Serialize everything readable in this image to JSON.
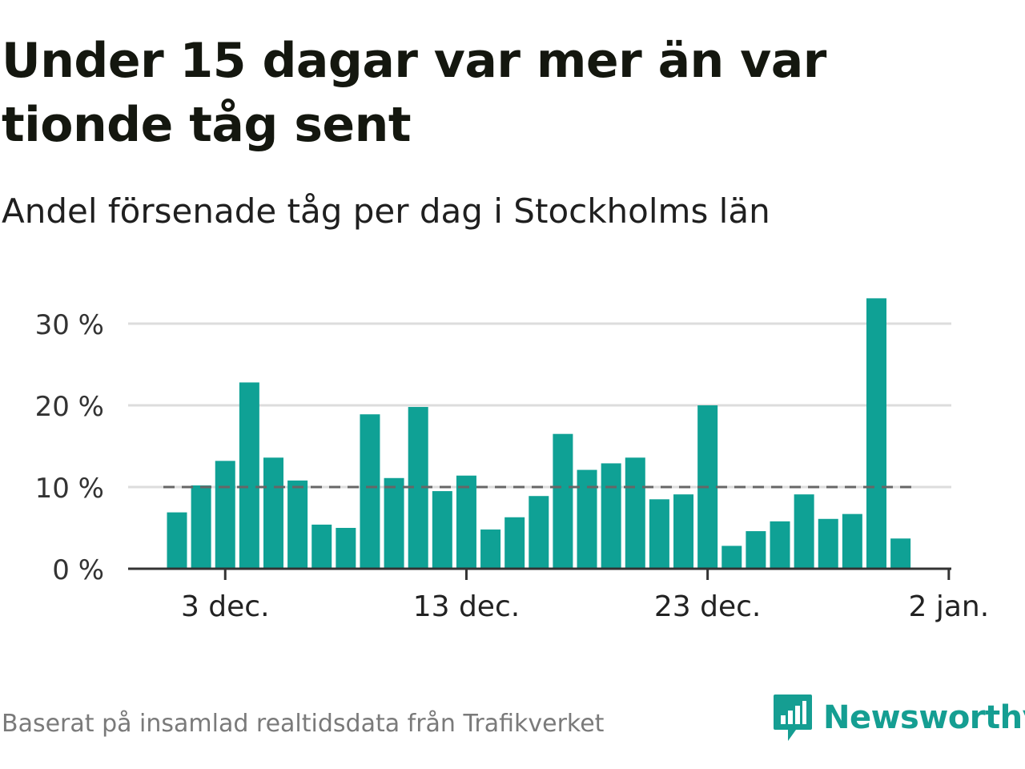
{
  "title": "Under 15 dagar var mer än var tionde tåg sent",
  "subtitle": "Andel försenade tåg per dag i Stockholms län",
  "source": "Baserat på insamlad realtidsdata från Trafikverket",
  "brand": {
    "name": "Newsworthy",
    "icon": "newsworthy-logo-icon"
  },
  "colors": {
    "bar": "#0fa195",
    "reference_line": "#666666",
    "grid": "#dddddd",
    "axis": "#333333"
  },
  "chart_data": {
    "type": "bar",
    "x": [
      "1 dec.",
      "2 dec.",
      "3 dec.",
      "4 dec.",
      "5 dec.",
      "6 dec.",
      "7 dec.",
      "8 dec.",
      "9 dec.",
      "10 dec.",
      "11 dec.",
      "12 dec.",
      "13 dec.",
      "14 dec.",
      "15 dec.",
      "16 dec.",
      "17 dec.",
      "18 dec.",
      "19 dec.",
      "20 dec.",
      "21 dec.",
      "22 dec.",
      "23 dec.",
      "24 dec.",
      "25 dec.",
      "26 dec.",
      "27 dec.",
      "28 dec.",
      "29 dec.",
      "30 dec.",
      "31 dec."
    ],
    "values": [
      6.9,
      10.2,
      13.2,
      22.8,
      13.6,
      10.8,
      5.4,
      5.0,
      18.9,
      11.1,
      19.8,
      9.5,
      11.4,
      4.8,
      6.3,
      8.9,
      16.5,
      12.1,
      12.9,
      13.6,
      8.5,
      9.1,
      20.0,
      2.8,
      4.6,
      5.8,
      9.1,
      6.1,
      6.7,
      33.1,
      3.7
    ],
    "reference_line": {
      "value": 10
    },
    "ylim": [
      0,
      30
    ],
    "y_ticks": [
      "0 %",
      "10 %",
      "20 %",
      "30 %"
    ],
    "x_ticks": [
      "3 dec.",
      "13 dec.",
      "23 dec.",
      "2 jan."
    ],
    "grid": true
  }
}
